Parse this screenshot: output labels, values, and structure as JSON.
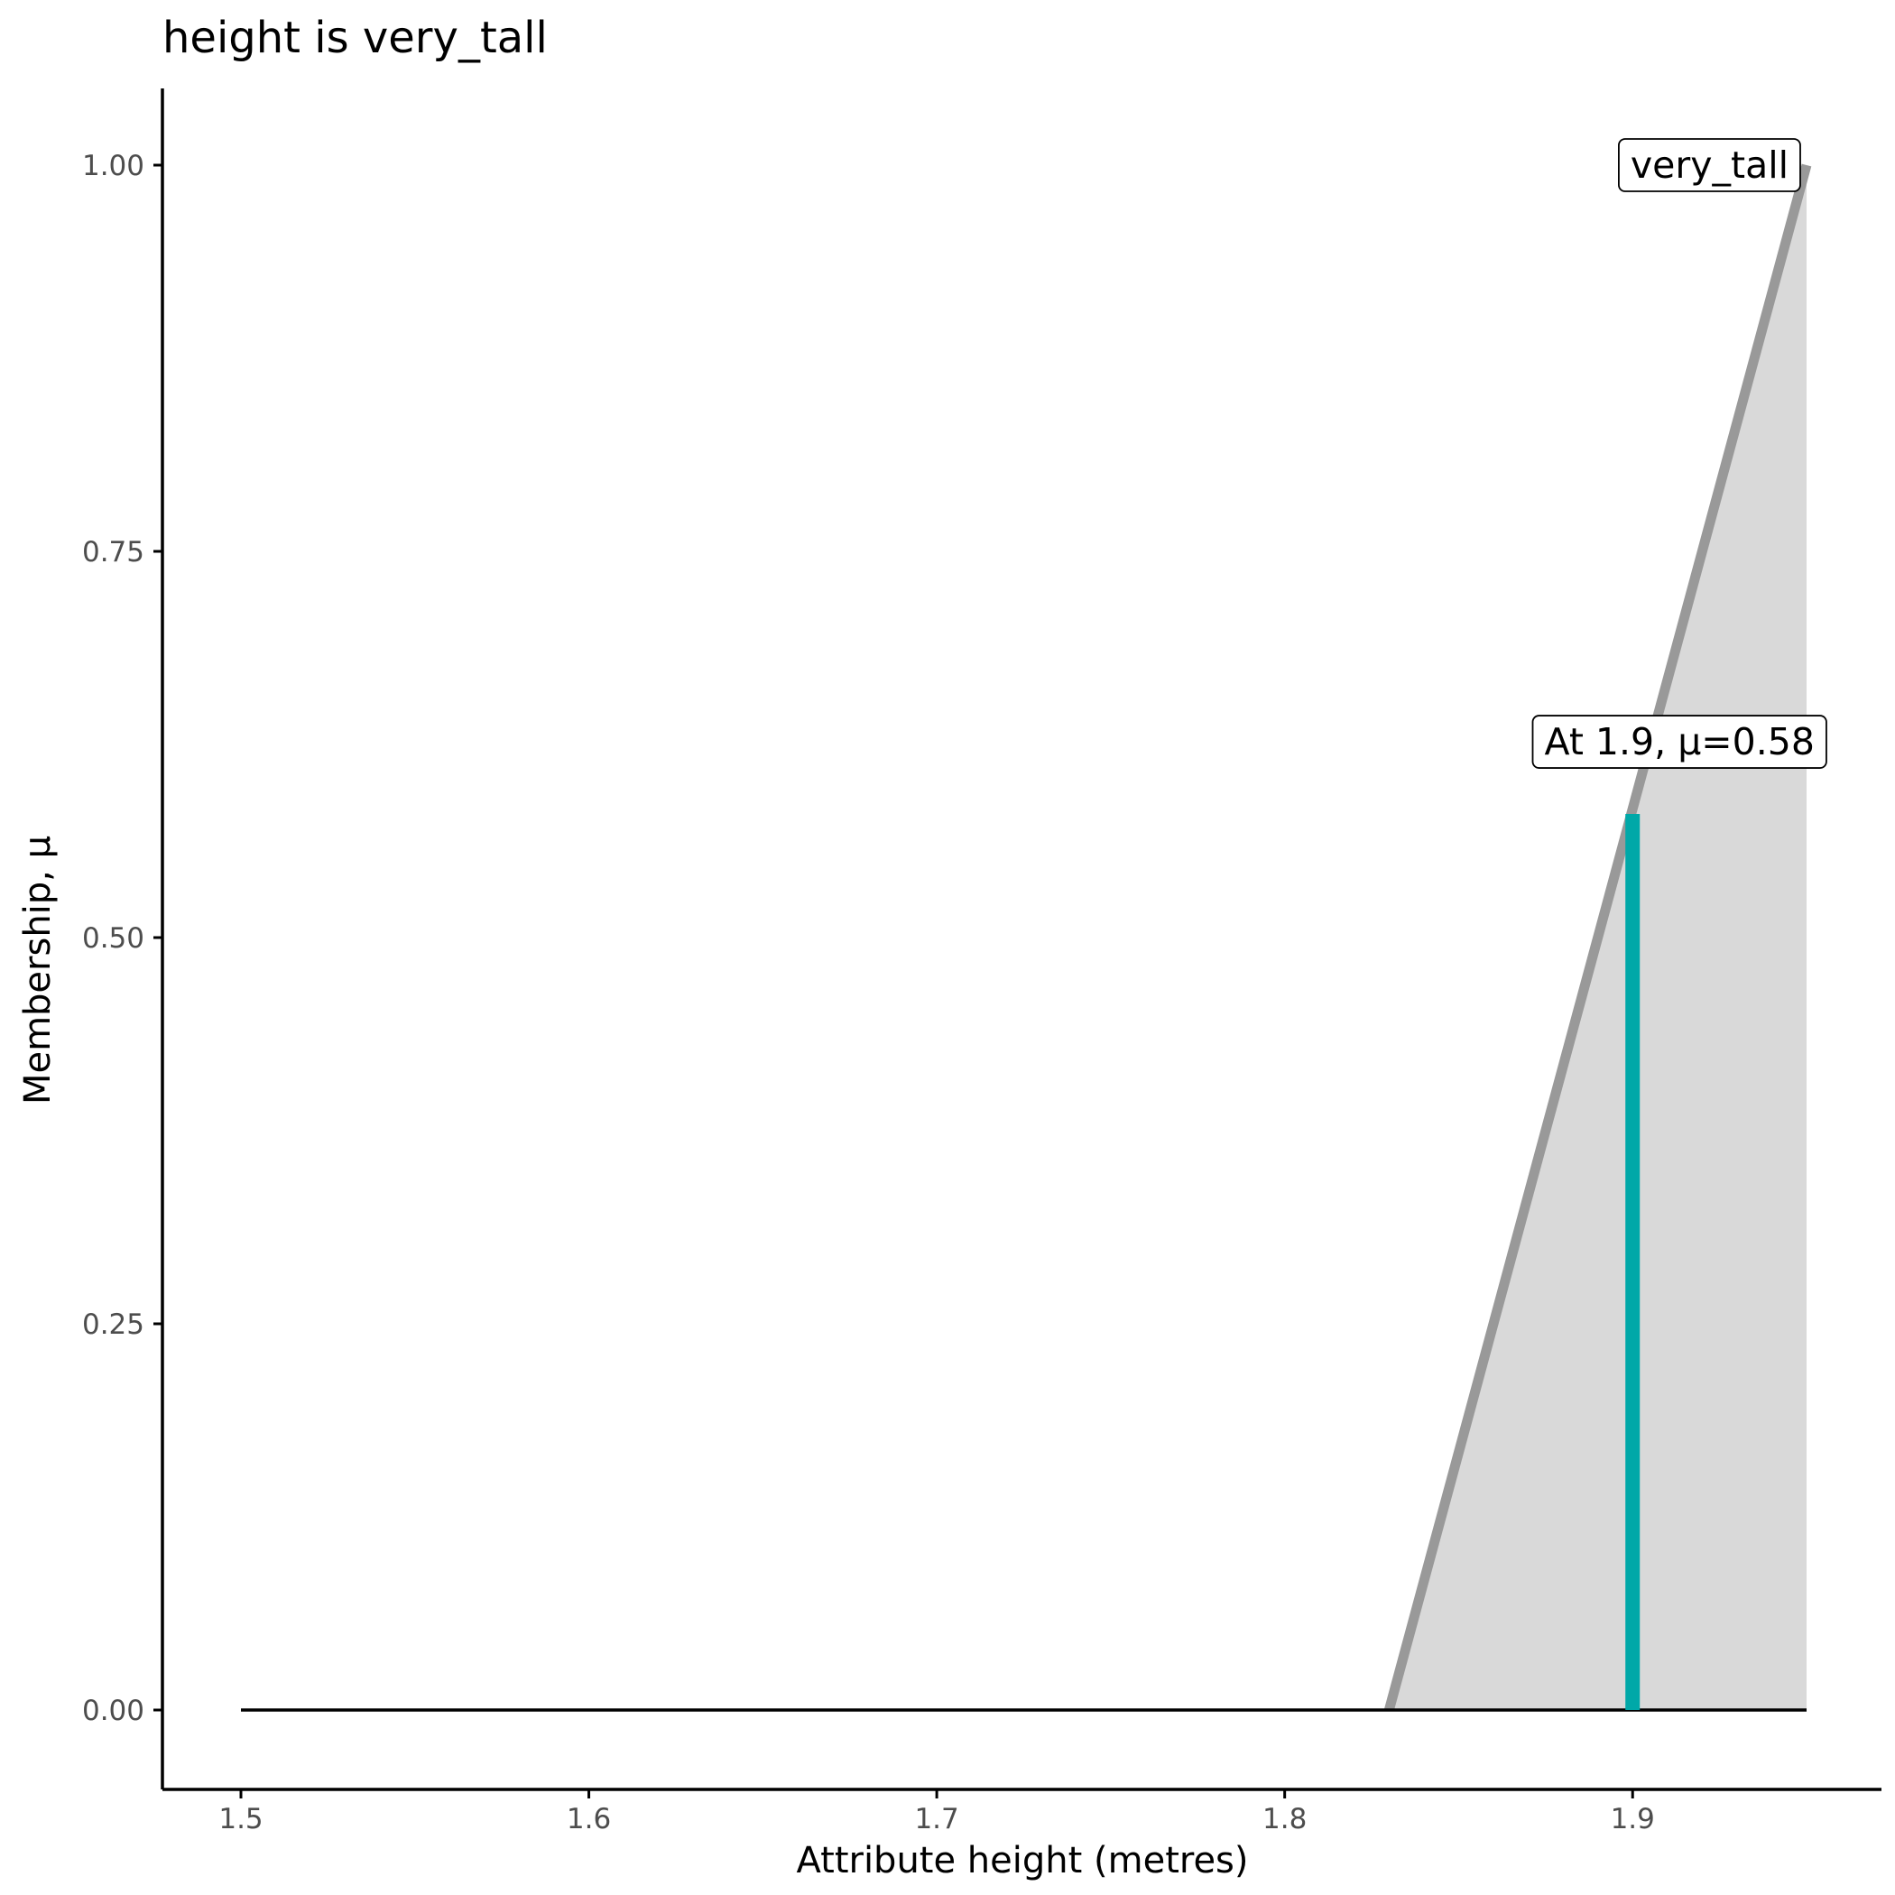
{
  "chart_data": {
    "type": "area",
    "title": "height is very_tall",
    "xlabel": "Attribute height (metres)",
    "ylabel": "Membership, μ",
    "xlim": [
      1.477,
      1.972
    ],
    "ylim": [
      -0.05,
      1.05
    ],
    "x_ticks": [
      "1.5",
      "1.6",
      "1.7",
      "1.8",
      "1.9"
    ],
    "y_ticks": [
      "0.00",
      "0.25",
      "0.50",
      "0.75",
      "1.00"
    ],
    "baseline": {
      "x_start": 1.5,
      "x_end": 1.95,
      "y": 0
    },
    "series": [
      {
        "name": "very_tall",
        "x": [
          1.83,
          1.95
        ],
        "y": [
          0,
          1
        ],
        "fill": true
      }
    ],
    "marker": {
      "x": 1.9,
      "mu": 0.58
    },
    "annotations": [
      {
        "text": "very_tall",
        "x": 1.95,
        "y": 1.0,
        "align": "right"
      },
      {
        "text": "At 1.9, μ=0.58",
        "x": 1.9,
        "y": 0.58,
        "align": "center"
      }
    ],
    "grid": false,
    "colors": {
      "line": "#999999",
      "fill": "#d9d9d9",
      "marker": "#00a8a8",
      "axis": "#000000",
      "tick_label": "#4d4d4d"
    }
  }
}
